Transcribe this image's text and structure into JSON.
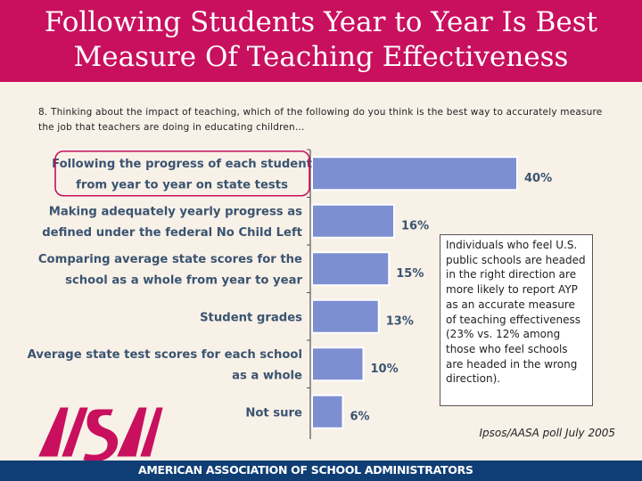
{
  "header": {
    "title_line1": "Following Students Year to Year Is Best",
    "title_line2": "Measure Of Teaching Effectiveness"
  },
  "question": "8. Thinking about the impact of teaching, which of the following do you think is the best way to accurately measure the job that teachers are doing in educating children…",
  "chart_data": {
    "type": "bar",
    "orientation": "horizontal",
    "categories": [
      [
        "Following the progress of each student",
        "from year to year on state tests"
      ],
      [
        "Making adequately yearly progress as",
        "defined under the federal No Child Left"
      ],
      [
        "Comparing average state scores for the",
        "school as a whole from year to year"
      ],
      [
        "Student grades"
      ],
      [
        "Average state test scores for each school",
        "as a whole"
      ],
      [
        "Not sure"
      ]
    ],
    "values": [
      40,
      16,
      15,
      13,
      10,
      6
    ],
    "value_labels": [
      "40%",
      "16%",
      "15%",
      "13%",
      "10%",
      "6%"
    ],
    "unit": "%",
    "highlighted_category_index": 0,
    "bar_color": "#7d8fd1",
    "highlight_color": "#c8105e",
    "label_color": "#3a5470"
  },
  "note": "Individuals who feel U.S. public schools are headed in the right direction are more likely to report AYP as an accurate measure of teaching effectiveness (23% vs. 12% among those who feel schools are headed in the wrong direction).",
  "source": "Ipsos/AASA poll July 2005",
  "footer": {
    "organization": "AMERICAN ASSOCIATION OF SCHOOL ADMINISTRATORS",
    "logo_text": "AASA"
  },
  "colors": {
    "header": "#c8105e",
    "footer": "#0f3e75",
    "background": "#f8f1e8"
  }
}
